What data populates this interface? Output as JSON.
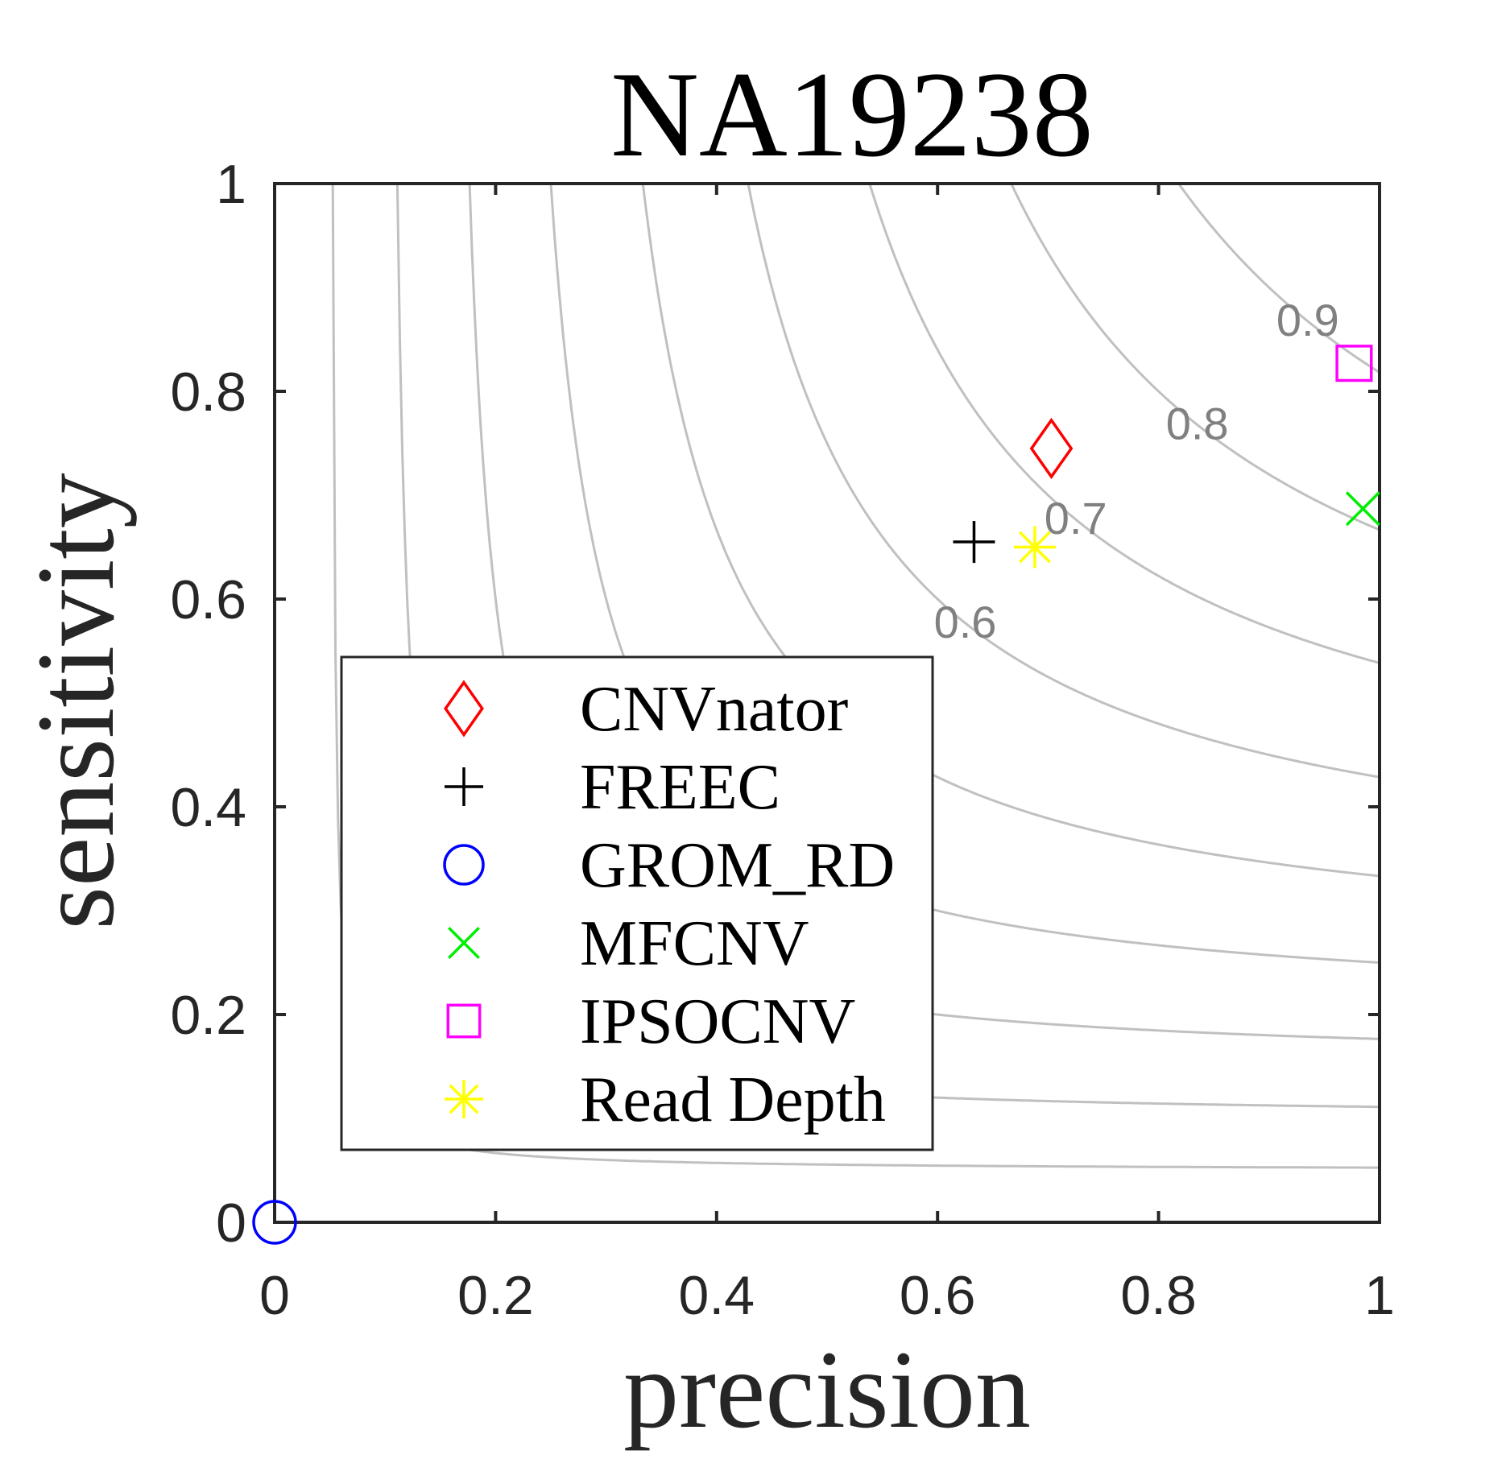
{
  "chart_data": {
    "type": "scatter",
    "title": "NA19238",
    "xlabel": "precision",
    "ylabel": "sensitivity",
    "xlim": [
      0,
      1
    ],
    "ylim": [
      0,
      1
    ],
    "x_ticks": [
      "0",
      "0.2",
      "0.4",
      "0.6",
      "0.8",
      "1"
    ],
    "y_ticks": [
      "0",
      "0.2",
      "0.4",
      "0.6",
      "0.8",
      "1"
    ],
    "grid": false,
    "background_contours": {
      "description_label": "F-score iso-lines",
      "levels": [
        0.1,
        0.2,
        0.3,
        0.4,
        0.5,
        0.6,
        0.7,
        0.8,
        0.9
      ],
      "labeled_levels": [
        "0.6",
        "0.7",
        "0.8",
        "0.9"
      ],
      "color": "#c0c0c0",
      "label_color": "#808080"
    },
    "legend_position": "lower-left",
    "series": [
      {
        "name": "CNVnator",
        "marker": "diamond",
        "color": "#ff0000",
        "x": 0.703,
        "y": 0.745
      },
      {
        "name": "FREEC",
        "marker": "plus",
        "color": "#000000",
        "x": 0.633,
        "y": 0.655
      },
      {
        "name": "GROM_RD",
        "marker": "circle",
        "color": "#0000ff",
        "x": 0.0,
        "y": 0.0
      },
      {
        "name": "MFCNV",
        "marker": "x",
        "color": "#00ee00",
        "x": 0.985,
        "y": 0.687
      },
      {
        "name": "IPSOCNV",
        "marker": "square",
        "color": "#ff00ff",
        "x": 0.977,
        "y": 0.827
      },
      {
        "name": "Read Depth",
        "marker": "asterisk",
        "color": "#ffff00",
        "x": 0.688,
        "y": 0.65
      }
    ]
  }
}
